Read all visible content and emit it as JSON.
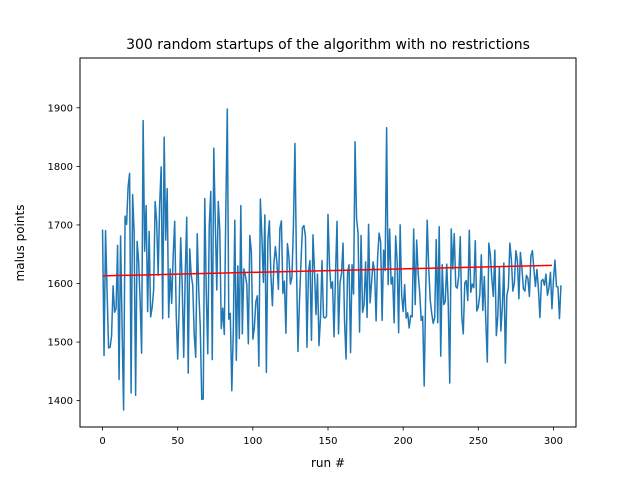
{
  "chart_data": {
    "type": "line",
    "title": "300 random startups of the algorithm with no restrictions",
    "xlabel": "run #",
    "ylabel": "malus points",
    "xlim": [
      -15,
      315
    ],
    "ylim": [
      1355,
      1985
    ],
    "xticks": [
      0,
      50,
      100,
      150,
      200,
      250,
      300
    ],
    "yticks": [
      1400,
      1500,
      1600,
      1700,
      1800,
      1900
    ],
    "grid": false,
    "legend": "none",
    "series": [
      {
        "color": "#1f77b4",
        "values": [
          1692,
          1477,
          1690,
          1589,
          1490,
          1491,
          1510,
          1596,
          1551,
          1557,
          1665,
          1436,
          1681,
          1526,
          1384,
          1715,
          1701,
          1765,
          1788,
          1413,
          1752,
          1688,
          1409,
          1672,
          1638,
          1571,
          1481,
          1878,
          1655,
          1733,
          1552,
          1689,
          1543,
          1559,
          1589,
          1740,
          1706,
          1614,
          1735,
          1799,
          1540,
          1850,
          1674,
          1762,
          1542,
          1625,
          1566,
          1648,
          1706,
          1549,
          1471,
          1564,
          1678,
          1597,
          1474,
          1613,
          1713,
          1447,
          1659,
          1614,
          1597,
          1512,
          1474,
          1685,
          1588,
          1527,
          1402,
          1403,
          1745,
          1588,
          1480,
          1699,
          1757,
          1470,
          1831,
          1707,
          1589,
          1740,
          1691,
          1523,
          1558,
          1513,
          1721,
          1898,
          1539,
          1549,
          1417,
          1521,
          1708,
          1469,
          1630,
          1506,
          1733,
          1514,
          1625,
          1614,
          1598,
          1497,
          1682,
          1654,
          1505,
          1525,
          1569,
          1579,
          1459,
          1744,
          1681,
          1602,
          1717,
          1448,
          1675,
          1707,
          1615,
          1562,
          1633,
          1663,
          1636,
          1590,
          1694,
          1707,
          1583,
          1604,
          1515,
          1668,
          1645,
          1599,
          1611,
          1698,
          1839,
          1637,
          1484,
          1568,
          1635,
          1695,
          1699,
          1680,
          1491,
          1621,
          1639,
          1503,
          1683,
          1623,
          1547,
          1616,
          1494,
          1541,
          1639,
          1543,
          1541,
          1544,
          1718,
          1630,
          1592,
          1603,
          1509,
          1616,
          1706,
          1514,
          1601,
          1617,
          1669,
          1537,
          1471,
          1618,
          1632,
          1482,
          1632,
          1582,
          1842,
          1711,
          1686,
          1517,
          1682,
          1551,
          1564,
          1637,
          1542,
          1701,
          1567,
          1602,
          1637,
          1620,
          1536,
          1644,
          1686,
          1671,
          1537,
          1657,
          1622,
          1866,
          1598,
          1693,
          1599,
          1611,
          1533,
          1681,
          1638,
          1516,
          1700,
          1580,
          1552,
          1598,
          1541,
          1550,
          1524,
          1545,
          1543,
          1693,
          1564,
          1674,
          1617,
          1585,
          1537,
          1544,
          1425,
          1586,
          1708,
          1627,
          1572,
          1549,
          1532,
          1542,
          1675,
          1533,
          1697,
          1476,
          1632,
          1564,
          1569,
          1633,
          1566,
          1430,
          1693,
          1625,
          1685,
          1595,
          1592,
          1613,
          1680,
          1544,
          1514,
          1601,
          1605,
          1571,
          1691,
          1585,
          1599,
          1593,
          1673,
          1553,
          1560,
          1581,
          1649,
          1554,
          1612,
          1536,
          1466,
          1669,
          1649,
          1608,
          1578,
          1657,
          1511,
          1545,
          1628,
          1519,
          1560,
          1635,
          1464,
          1580,
          1592,
          1669,
          1641,
          1587,
          1601,
          1656,
          1640,
          1574,
          1653,
          1627,
          1591,
          1587,
          1614,
          1609,
          1578,
          1647,
          1656,
          1624,
          1595,
          1624,
          1591,
          1542,
          1604,
          1607,
          1597,
          1616,
          1580,
          1593,
          1619,
          1557,
          1606,
          1640,
          1595,
          1594,
          1540,
          1597
        ]
      },
      {
        "color": "#ff0000",
        "x": [
          0,
          299
        ],
        "values": [
          1613,
          1631
        ]
      }
    ]
  }
}
